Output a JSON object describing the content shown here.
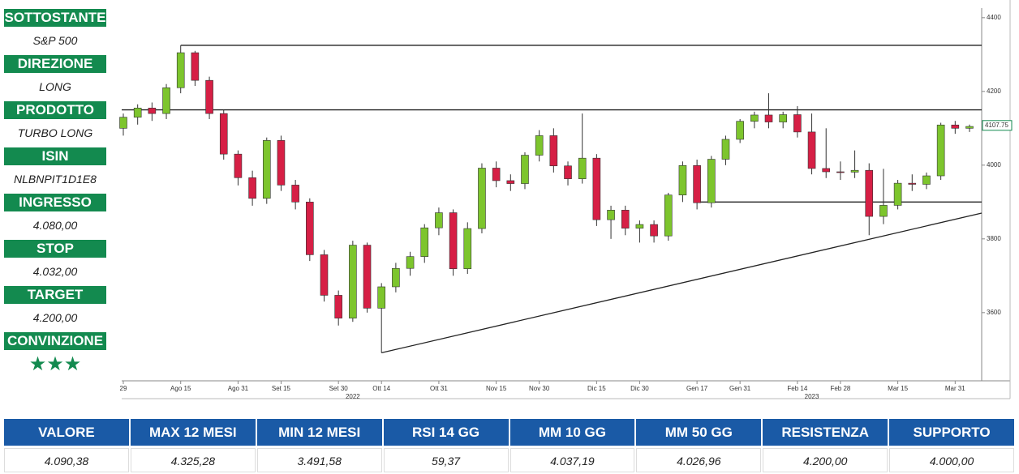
{
  "panel": [
    {
      "label": "SOTTOSTANTE",
      "value": "S&P 500"
    },
    {
      "label": "DIREZIONE",
      "value": "LONG"
    },
    {
      "label": "PRODOTTO",
      "value": "TURBO LONG"
    },
    {
      "label": "ISIN",
      "value": "NLBNPIT1D1E8"
    },
    {
      "label": "INGRESSO",
      "value": "4.080,00"
    },
    {
      "label": "STOP",
      "value": "4.032,00"
    },
    {
      "label": "TARGET",
      "value": "4.200,00"
    },
    {
      "label": "CONVINZIONE",
      "value": "★★★"
    }
  ],
  "table": {
    "headers": [
      "VALORE",
      "MAX 12 MESI",
      "MIN 12 MESI",
      "RSI 14 GG",
      "MM 10 GG",
      "MM 50 GG",
      "RESISTENZA",
      "SUPPORTO"
    ],
    "values": [
      "4.090,38",
      "4.325,28",
      "3.491,58",
      "59,37",
      "4.037,19",
      "4.026,96",
      "4.200,00",
      "4.000,00"
    ]
  },
  "chart_data": {
    "type": "candlestick",
    "categories": [
      "29",
      null,
      null,
      null,
      "Ago 15",
      null,
      null,
      null,
      "Ago 31",
      null,
      null,
      "Set 15",
      null,
      null,
      null,
      "Set 30",
      null,
      null,
      "Ott 14",
      null,
      null,
      null,
      "Ott 31",
      null,
      null,
      null,
      "Nov 15",
      null,
      null,
      "Nov 30",
      null,
      null,
      null,
      "Dic 15",
      null,
      null,
      "Dic 30",
      null,
      null,
      null,
      "Gen 17",
      null,
      null,
      "Gen 31",
      null,
      null,
      null,
      "Feb 14",
      null,
      null,
      "Feb 28",
      null,
      null,
      null,
      "Mar 15",
      null,
      null,
      null,
      "Mar 31",
      null
    ],
    "open": [
      4100,
      4130,
      4155,
      4140,
      4210,
      4305,
      4230,
      4140,
      4030,
      3966,
      3910,
      4067,
      3946,
      3900,
      3757,
      3647,
      3585,
      3783,
      3612,
      3670,
      3720,
      3752,
      3830,
      3871,
      3719,
      3828,
      3992,
      3958,
      3950,
      4027,
      4080,
      3998,
      3963,
      4019,
      3852,
      3878,
      3829,
      3839,
      3808,
      3919,
      3999,
      3898,
      4016,
      4070,
      4119,
      4136,
      4117,
      4137,
      4090,
      3991,
      3982,
      3981,
      3986,
      3861,
      3891,
      3951,
      3948,
      3971,
      4109,
      4100
    ],
    "high": [
      4140,
      4165,
      4170,
      4220,
      4325,
      4310,
      4240,
      4150,
      4040,
      3985,
      4075,
      4080,
      3960,
      3910,
      3770,
      3660,
      3795,
      3790,
      3680,
      3735,
      3765,
      3840,
      3885,
      3880,
      3845,
      4005,
      4010,
      3975,
      4035,
      4095,
      4100,
      4010,
      4140,
      4030,
      3890,
      3890,
      3850,
      3850,
      3925,
      4010,
      4015,
      4025,
      4080,
      4125,
      4145,
      4195,
      4145,
      4160,
      4140,
      4100,
      4010,
      4040,
      4005,
      3990,
      3960,
      3975,
      3980,
      4115,
      4120,
      4110
    ],
    "low": [
      4080,
      4110,
      4120,
      4125,
      4195,
      4215,
      4125,
      4015,
      3945,
      3890,
      3895,
      3930,
      3880,
      3740,
      3630,
      3565,
      3575,
      3600,
      3491,
      3655,
      3700,
      3735,
      3810,
      3700,
      3705,
      3815,
      3940,
      3930,
      3935,
      4010,
      3980,
      3945,
      3950,
      3835,
      3800,
      3810,
      3790,
      3790,
      3795,
      3900,
      3880,
      3885,
      4000,
      4060,
      4100,
      4100,
      4100,
      4075,
      3975,
      3965,
      3960,
      3965,
      3810,
      3840,
      3880,
      3930,
      3935,
      3960,
      4085,
      4090
    ],
    "close": [
      4130,
      4155,
      4140,
      4210,
      4305,
      4230,
      4140,
      4030,
      3966,
      3910,
      4067,
      3946,
      3900,
      3757,
      3647,
      3585,
      3783,
      3612,
      3670,
      3720,
      3752,
      3830,
      3871,
      3719,
      3828,
      3992,
      3958,
      3950,
      4027,
      4080,
      3998,
      3963,
      4019,
      3852,
      3878,
      3829,
      3839,
      3808,
      3919,
      3999,
      3898,
      4016,
      4070,
      4119,
      4136,
      4117,
      4137,
      4090,
      3991,
      3982,
      3981,
      3986,
      3861,
      3891,
      3951,
      3948,
      3971,
      4109,
      4100,
      4105
    ],
    "colors": {
      "up": "#7dc52d",
      "down": "#d61f45"
    },
    "ylim": [
      3415,
      4426
    ],
    "yticks": [
      3600,
      3800,
      4000,
      4200,
      4400
    ],
    "last_price": 4107.75,
    "levels": [
      {
        "value": 4325,
        "from": 4
      },
      {
        "value": 4150,
        "from": 0
      },
      {
        "value": 3900,
        "from": 40
      }
    ],
    "trendline": {
      "from": 18,
      "values": [
        3491,
        3870
      ]
    },
    "years": [
      {
        "label": "2022",
        "index": 16
      },
      {
        "label": "2023",
        "index": 48
      }
    ]
  }
}
